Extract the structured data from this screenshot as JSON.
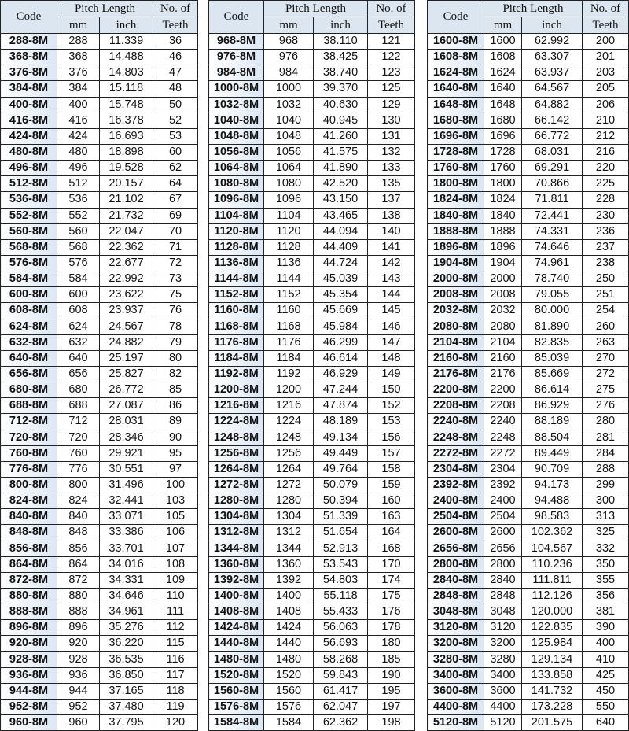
{
  "headers": {
    "code": "Code",
    "pitch_length": "Pitch Length",
    "mm": "mm",
    "inch": "inch",
    "teeth_1": "No. of",
    "teeth_2": "Teeth"
  },
  "tables": [
    [
      [
        "288-8M",
        "288",
        "11.339",
        "36"
      ],
      [
        "368-8M",
        "368",
        "14.488",
        "46"
      ],
      [
        "376-8M",
        "376",
        "14.803",
        "47"
      ],
      [
        "384-8M",
        "384",
        "15.118",
        "48"
      ],
      [
        "400-8M",
        "400",
        "15.748",
        "50"
      ],
      [
        "416-8M",
        "416",
        "16.378",
        "52"
      ],
      [
        "424-8M",
        "424",
        "16.693",
        "53"
      ],
      [
        "480-8M",
        "480",
        "18.898",
        "60"
      ],
      [
        "496-8M",
        "496",
        "19.528",
        "62"
      ],
      [
        "512-8M",
        "512",
        "20.157",
        "64"
      ],
      [
        "536-8M",
        "536",
        "21.102",
        "67"
      ],
      [
        "552-8M",
        "552",
        "21.732",
        "69"
      ],
      [
        "560-8M",
        "560",
        "22.047",
        "70"
      ],
      [
        "568-8M",
        "568",
        "22.362",
        "71"
      ],
      [
        "576-8M",
        "576",
        "22.677",
        "72"
      ],
      [
        "584-8M",
        "584",
        "22.992",
        "73"
      ],
      [
        "600-8M",
        "600",
        "23.622",
        "75"
      ],
      [
        "608-8M",
        "608",
        "23.937",
        "76"
      ],
      [
        "624-8M",
        "624",
        "24.567",
        "78"
      ],
      [
        "632-8M",
        "632",
        "24.882",
        "79"
      ],
      [
        "640-8M",
        "640",
        "25.197",
        "80"
      ],
      [
        "656-8M",
        "656",
        "25.827",
        "82"
      ],
      [
        "680-8M",
        "680",
        "26.772",
        "85"
      ],
      [
        "688-8M",
        "688",
        "27.087",
        "86"
      ],
      [
        "712-8M",
        "712",
        "28.031",
        "89"
      ],
      [
        "720-8M",
        "720",
        "28.346",
        "90"
      ],
      [
        "760-8M",
        "760",
        "29.921",
        "95"
      ],
      [
        "776-8M",
        "776",
        "30.551",
        "97"
      ],
      [
        "800-8M",
        "800",
        "31.496",
        "100"
      ],
      [
        "824-8M",
        "824",
        "32.441",
        "103"
      ],
      [
        "840-8M",
        "840",
        "33.071",
        "105"
      ],
      [
        "848-8M",
        "848",
        "33.386",
        "106"
      ],
      [
        "856-8M",
        "856",
        "33.701",
        "107"
      ],
      [
        "864-8M",
        "864",
        "34.016",
        "108"
      ],
      [
        "872-8M",
        "872",
        "34.331",
        "109"
      ],
      [
        "880-8M",
        "880",
        "34.646",
        "110"
      ],
      [
        "888-8M",
        "888",
        "34.961",
        "111"
      ],
      [
        "896-8M",
        "896",
        "35.276",
        "112"
      ],
      [
        "920-8M",
        "920",
        "36.220",
        "115"
      ],
      [
        "928-8M",
        "928",
        "36.535",
        "116"
      ],
      [
        "936-8M",
        "936",
        "36.850",
        "117"
      ],
      [
        "944-8M",
        "944",
        "37.165",
        "118"
      ],
      [
        "952-8M",
        "952",
        "37.480",
        "119"
      ],
      [
        "960-8M",
        "960",
        "37.795",
        "120"
      ]
    ],
    [
      [
        "968-8M",
        "968",
        "38.110",
        "121"
      ],
      [
        "976-8M",
        "976",
        "38.425",
        "122"
      ],
      [
        "984-8M",
        "984",
        "38.740",
        "123"
      ],
      [
        "1000-8M",
        "1000",
        "39.370",
        "125"
      ],
      [
        "1032-8M",
        "1032",
        "40.630",
        "129"
      ],
      [
        "1040-8M",
        "1040",
        "40.945",
        "130"
      ],
      [
        "1048-8M",
        "1048",
        "41.260",
        "131"
      ],
      [
        "1056-8M",
        "1056",
        "41.575",
        "132"
      ],
      [
        "1064-8M",
        "1064",
        "41.890",
        "133"
      ],
      [
        "1080-8M",
        "1080",
        "42.520",
        "135"
      ],
      [
        "1096-8M",
        "1096",
        "43.150",
        "137"
      ],
      [
        "1104-8M",
        "1104",
        "43.465",
        "138"
      ],
      [
        "1120-8M",
        "1120",
        "44.094",
        "140"
      ],
      [
        "1128-8M",
        "1128",
        "44.409",
        "141"
      ],
      [
        "1136-8M",
        "1136",
        "44.724",
        "142"
      ],
      [
        "1144-8M",
        "1144",
        "45.039",
        "143"
      ],
      [
        "1152-8M",
        "1152",
        "45.354",
        "144"
      ],
      [
        "1160-8M",
        "1160",
        "45.669",
        "145"
      ],
      [
        "1168-8M",
        "1168",
        "45.984",
        "146"
      ],
      [
        "1176-8M",
        "1176",
        "46.299",
        "147"
      ],
      [
        "1184-8M",
        "1184",
        "46.614",
        "148"
      ],
      [
        "1192-8M",
        "1192",
        "46.929",
        "149"
      ],
      [
        "1200-8M",
        "1200",
        "47.244",
        "150"
      ],
      [
        "1216-8M",
        "1216",
        "47.874",
        "152"
      ],
      [
        "1224-8M",
        "1224",
        "48.189",
        "153"
      ],
      [
        "1248-8M",
        "1248",
        "49.134",
        "156"
      ],
      [
        "1256-8M",
        "1256",
        "49.449",
        "157"
      ],
      [
        "1264-8M",
        "1264",
        "49.764",
        "158"
      ],
      [
        "1272-8M",
        "1272",
        "50.079",
        "159"
      ],
      [
        "1280-8M",
        "1280",
        "50.394",
        "160"
      ],
      [
        "1304-8M",
        "1304",
        "51.339",
        "163"
      ],
      [
        "1312-8M",
        "1312",
        "51.654",
        "164"
      ],
      [
        "1344-8M",
        "1344",
        "52.913",
        "168"
      ],
      [
        "1360-8M",
        "1360",
        "53.543",
        "170"
      ],
      [
        "1392-8M",
        "1392",
        "54.803",
        "174"
      ],
      [
        "1400-8M",
        "1400",
        "55.118",
        "175"
      ],
      [
        "1408-8M",
        "1408",
        "55.433",
        "176"
      ],
      [
        "1424-8M",
        "1424",
        "56.063",
        "178"
      ],
      [
        "1440-8M",
        "1440",
        "56.693",
        "180"
      ],
      [
        "1480-8M",
        "1480",
        "58.268",
        "185"
      ],
      [
        "1520-8M",
        "1520",
        "59.843",
        "190"
      ],
      [
        "1560-8M",
        "1560",
        "61.417",
        "195"
      ],
      [
        "1576-8M",
        "1576",
        "62.047",
        "197"
      ],
      [
        "1584-8M",
        "1584",
        "62.362",
        "198"
      ]
    ],
    [
      [
        "1600-8M",
        "1600",
        "62.992",
        "200"
      ],
      [
        "1608-8M",
        "1608",
        "63.307",
        "201"
      ],
      [
        "1624-8M",
        "1624",
        "63.937",
        "203"
      ],
      [
        "1640-8M",
        "1640",
        "64.567",
        "205"
      ],
      [
        "1648-8M",
        "1648",
        "64.882",
        "206"
      ],
      [
        "1680-8M",
        "1680",
        "66.142",
        "210"
      ],
      [
        "1696-8M",
        "1696",
        "66.772",
        "212"
      ],
      [
        "1728-8M",
        "1728",
        "68.031",
        "216"
      ],
      [
        "1760-8M",
        "1760",
        "69.291",
        "220"
      ],
      [
        "1800-8M",
        "1800",
        "70.866",
        "225"
      ],
      [
        "1824-8M",
        "1824",
        "71.811",
        "228"
      ],
      [
        "1840-8M",
        "1840",
        "72.441",
        "230"
      ],
      [
        "1888-8M",
        "1888",
        "74.331",
        "236"
      ],
      [
        "1896-8M",
        "1896",
        "74.646",
        "237"
      ],
      [
        "1904-8M",
        "1904",
        "74.961",
        "238"
      ],
      [
        "2000-8M",
        "2000",
        "78.740",
        "250"
      ],
      [
        "2008-8M",
        "2008",
        "79.055",
        "251"
      ],
      [
        "2032-8M",
        "2032",
        "80.000",
        "254"
      ],
      [
        "2080-8M",
        "2080",
        "81.890",
        "260"
      ],
      [
        "2104-8M",
        "2104",
        "82.835",
        "263"
      ],
      [
        "2160-8M",
        "2160",
        "85.039",
        "270"
      ],
      [
        "2176-8M",
        "2176",
        "85.669",
        "272"
      ],
      [
        "2200-8M",
        "2200",
        "86.614",
        "275"
      ],
      [
        "2208-8M",
        "2208",
        "86.929",
        "276"
      ],
      [
        "2240-8M",
        "2240",
        "88.189",
        "280"
      ],
      [
        "2248-8M",
        "2248",
        "88.504",
        "281"
      ],
      [
        "2272-8M",
        "2272",
        "89.449",
        "284"
      ],
      [
        "2304-8M",
        "2304",
        "90.709",
        "288"
      ],
      [
        "2392-8M",
        "2392",
        "94.173",
        "299"
      ],
      [
        "2400-8M",
        "2400",
        "94.488",
        "300"
      ],
      [
        "2504-8M",
        "2504",
        "98.583",
        "313"
      ],
      [
        "2600-8M",
        "2600",
        "102.362",
        "325"
      ],
      [
        "2656-8M",
        "2656",
        "104.567",
        "332"
      ],
      [
        "2800-8M",
        "2800",
        "110.236",
        "350"
      ],
      [
        "2840-8M",
        "2840",
        "111.811",
        "355"
      ],
      [
        "2848-8M",
        "2848",
        "112.126",
        "356"
      ],
      [
        "3048-8M",
        "3048",
        "120.000",
        "381"
      ],
      [
        "3120-8M",
        "3120",
        "122.835",
        "390"
      ],
      [
        "3200-8M",
        "3200",
        "125.984",
        "400"
      ],
      [
        "3280-8M",
        "3280",
        "129.134",
        "410"
      ],
      [
        "3400-8M",
        "3400",
        "133.858",
        "425"
      ],
      [
        "3600-8M",
        "3600",
        "141.732",
        "450"
      ],
      [
        "4400-8M",
        "4400",
        "173.228",
        "550"
      ],
      [
        "5120-8M",
        "5120",
        "201.575",
        "640"
      ]
    ]
  ]
}
